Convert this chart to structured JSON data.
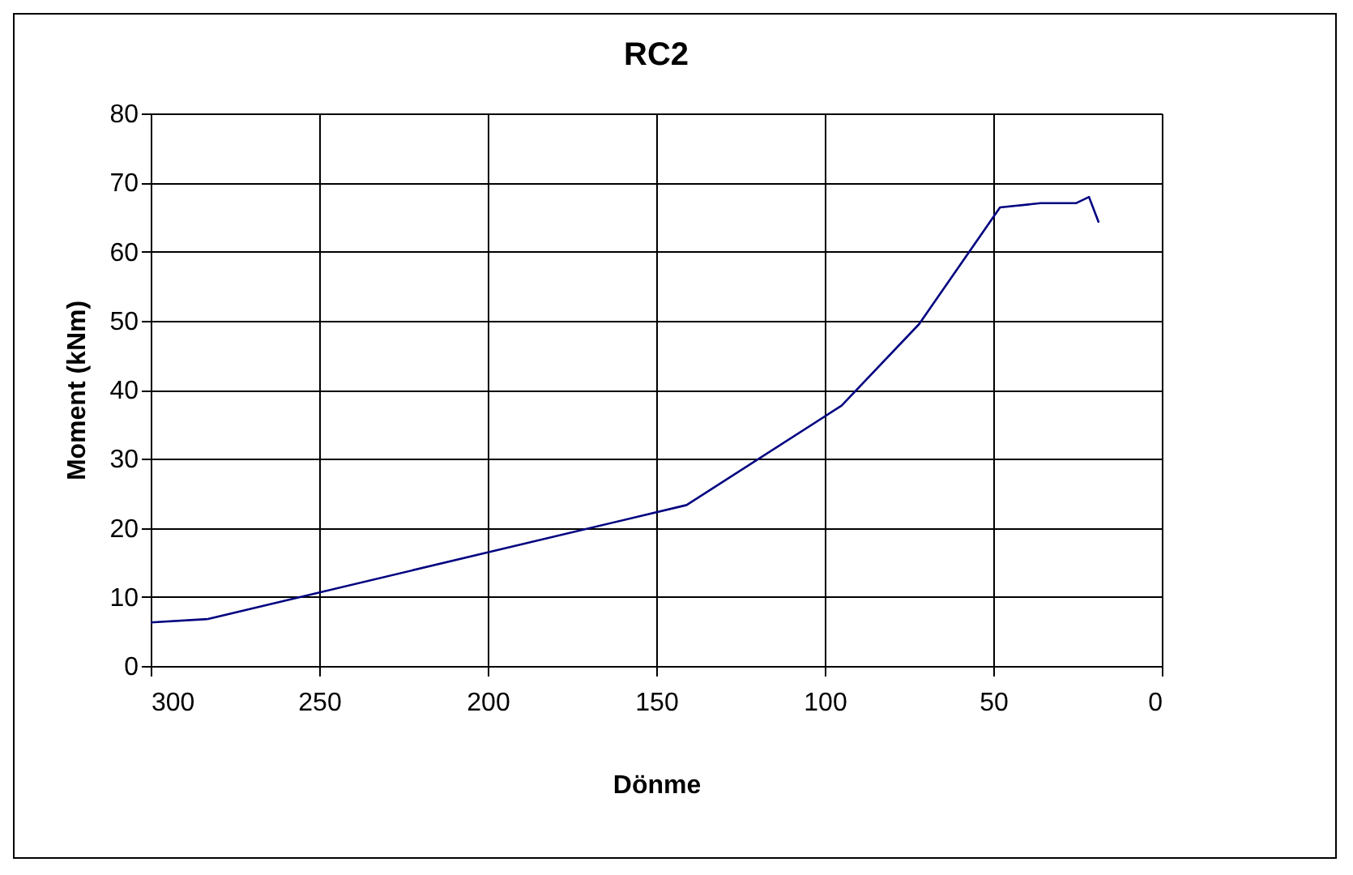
{
  "chart_data": {
    "type": "line",
    "title": "RC2",
    "xlabel": "Dönme",
    "ylabel": "Moment (kNm)",
    "x": [
      300,
      283,
      141,
      95,
      72,
      48,
      36,
      25.5,
      21.6,
      18.7
    ],
    "series": [
      {
        "color": "#000080",
        "values": [
          6.3,
          6.8,
          23.3,
          37.7,
          49.5,
          66.4,
          67.0,
          67.0,
          67.9,
          64.2
        ]
      }
    ],
    "xlim": [
      300,
      0
    ],
    "xticks": [
      300,
      250,
      200,
      150,
      100,
      50,
      0
    ],
    "ylim": [
      0,
      80
    ],
    "yticks": [
      0,
      10,
      20,
      30,
      40,
      50,
      60,
      70,
      80
    ],
    "grid": true,
    "marker": "none",
    "line_style": "solid"
  }
}
